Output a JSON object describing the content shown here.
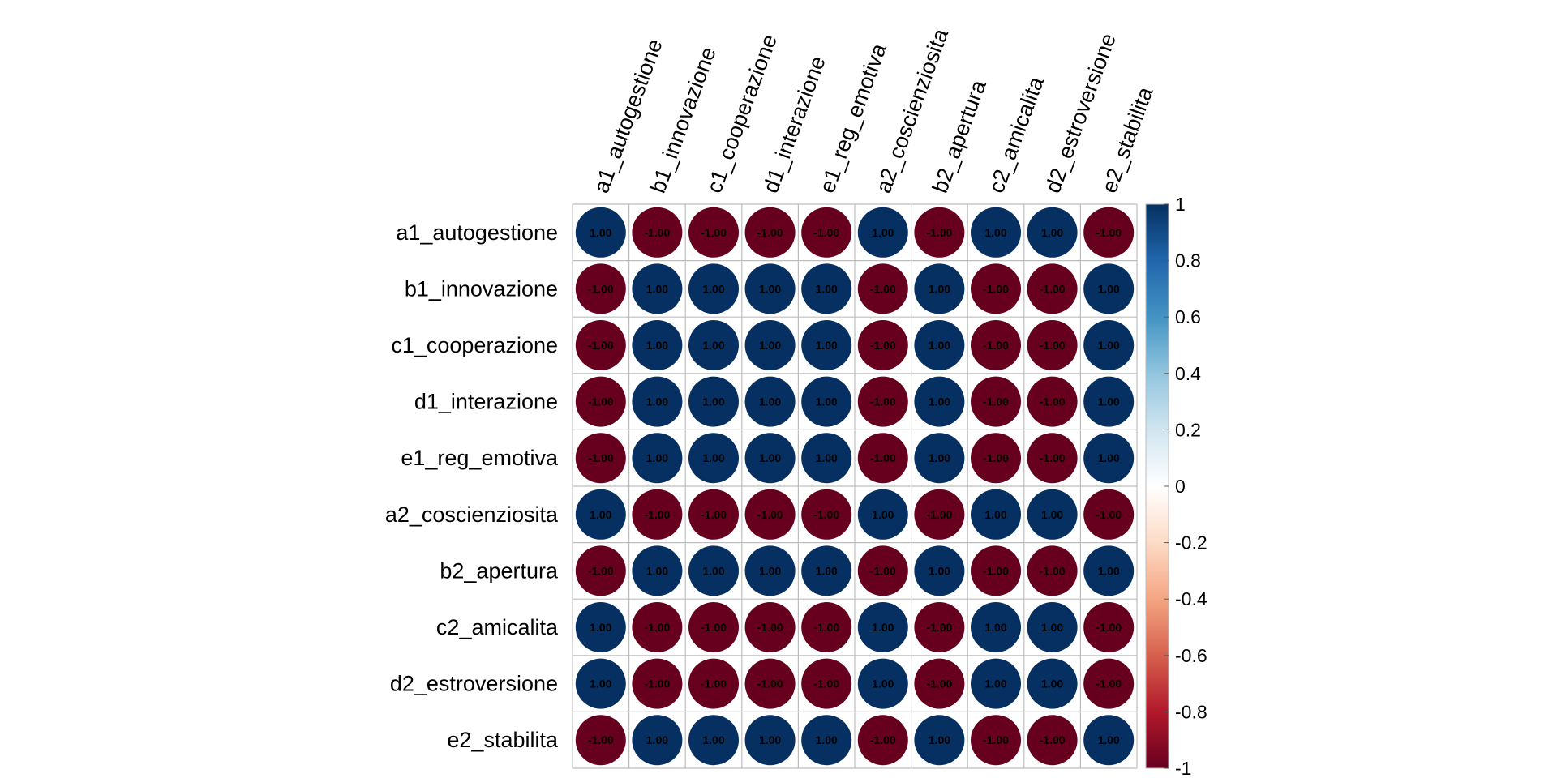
{
  "chart_data": {
    "type": "heatmap",
    "variables": [
      "a1_autogestione",
      "b1_innovazione",
      "c1_cooperazione",
      "d1_interazione",
      "e1_reg_emotiva",
      "a2_coscienziosita",
      "b2_apertura",
      "c2_amicalita",
      "d2_estroversione",
      "e2_stabilita"
    ],
    "matrix": [
      [
        1,
        -1,
        -1,
        -1,
        -1,
        1,
        -1,
        1,
        1,
        -1
      ],
      [
        -1,
        1,
        1,
        1,
        1,
        -1,
        1,
        -1,
        -1,
        1
      ],
      [
        -1,
        1,
        1,
        1,
        1,
        -1,
        1,
        -1,
        -1,
        1
      ],
      [
        -1,
        1,
        1,
        1,
        1,
        -1,
        1,
        -1,
        -1,
        1
      ],
      [
        -1,
        1,
        1,
        1,
        1,
        -1,
        1,
        -1,
        -1,
        1
      ],
      [
        1,
        -1,
        -1,
        -1,
        -1,
        1,
        -1,
        1,
        1,
        -1
      ],
      [
        -1,
        1,
        1,
        1,
        1,
        -1,
        1,
        -1,
        -1,
        1
      ],
      [
        1,
        -1,
        -1,
        -1,
        -1,
        1,
        -1,
        1,
        1,
        -1
      ],
      [
        1,
        -1,
        -1,
        -1,
        -1,
        1,
        -1,
        1,
        1,
        -1
      ],
      [
        -1,
        1,
        1,
        1,
        1,
        -1,
        1,
        -1,
        -1,
        1
      ]
    ],
    "value_format_decimals": 2,
    "colorbar": {
      "range": [
        -1,
        1
      ],
      "ticks": [
        "1",
        "0.8",
        "0.6",
        "0.4",
        "0.2",
        "0",
        "-0.2",
        "-0.4",
        "-0.6",
        "-0.8",
        "-1"
      ],
      "tick_values": [
        1,
        0.8,
        0.6,
        0.4,
        0.2,
        0,
        -0.2,
        -0.4,
        -0.6,
        -0.8,
        -1
      ],
      "colors": [
        "#67001F",
        "#B2182B",
        "#D6604D",
        "#F4A582",
        "#FDDBC7",
        "#FFFFFF",
        "#D1E5F0",
        "#92C5DE",
        "#4393C3",
        "#2166AC",
        "#053061"
      ]
    },
    "grid": true,
    "legend_placement": "right",
    "title": "",
    "xlabel": "",
    "ylabel": ""
  }
}
